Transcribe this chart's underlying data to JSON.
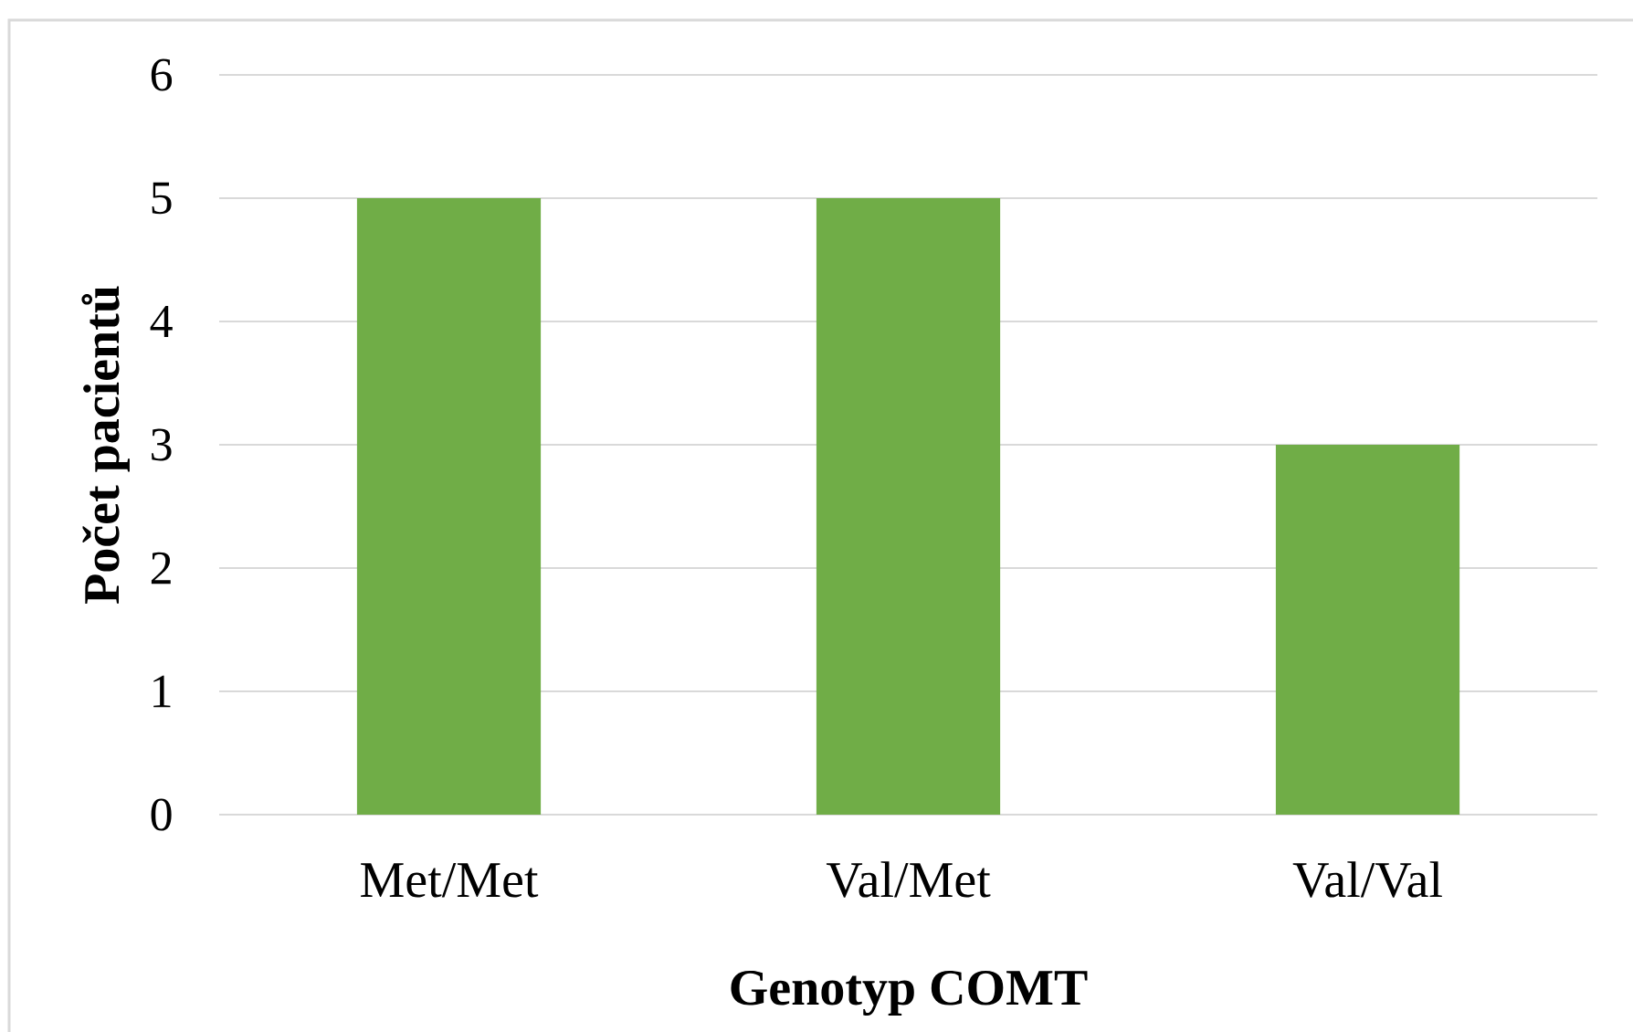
{
  "chart_data": {
    "type": "bar",
    "xlabel": "Genotyp COMT",
    "ylabel": "Počet pacientů",
    "categories": [
      "Met/Met",
      "Val/Met",
      "Val/Val"
    ],
    "values": [
      5,
      5,
      3
    ],
    "color": "#70ad47",
    "ylim": [
      0,
      6
    ],
    "yticks": [
      0,
      1,
      2,
      3,
      4,
      5,
      6
    ],
    "grid": "y"
  }
}
